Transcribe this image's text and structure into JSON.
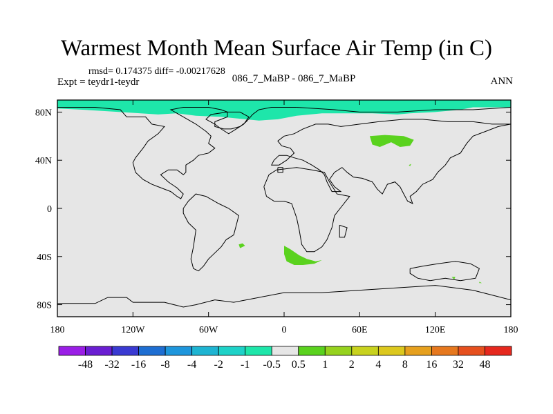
{
  "title": "Warmest Month Mean Surface Air Temp (in C)",
  "stats": "rmsd= 0.174375  diff= -0.00217628",
  "experiment": "Expt = teydr1-teydr",
  "center_label": "086_7_MaBP - 086_7_MaBP",
  "season": "ANN",
  "map": {
    "lon_range": [
      -180,
      180
    ],
    "lat_range": [
      -90,
      90
    ],
    "background_color": "#e6e6e6",
    "coastline_color": "#000000"
  },
  "axes": {
    "x_ticks": [
      {
        "value": -180,
        "label": "180"
      },
      {
        "value": -120,
        "label": "120W"
      },
      {
        "value": -60,
        "label": "60W"
      },
      {
        "value": 0,
        "label": "0"
      },
      {
        "value": 60,
        "label": "60E"
      },
      {
        "value": 120,
        "label": "120E"
      },
      {
        "value": 180,
        "label": "180"
      }
    ],
    "y_ticks": [
      {
        "value": 80,
        "label": "80N"
      },
      {
        "value": 40,
        "label": "40N"
      },
      {
        "value": 0,
        "label": "0"
      },
      {
        "value": -40,
        "label": "40S"
      },
      {
        "value": -80,
        "label": "80S"
      }
    ]
  },
  "colorbar": {
    "colors": [
      "#9a1ee6",
      "#6a1ed2",
      "#3a3ad2",
      "#1e6ed2",
      "#1e96dc",
      "#1eb4d2",
      "#1ed2c8",
      "#1ee6aa",
      "#e6e6e6",
      "#5ad21e",
      "#96d21e",
      "#c8d21e",
      "#dcc81e",
      "#e6a01e",
      "#e6781e",
      "#e6501e",
      "#e6281e"
    ],
    "labels": [
      "-48",
      "-32",
      "-16",
      "-8",
      "-4",
      "-2",
      "-1",
      "-0.5",
      "0.5",
      "1",
      "2",
      "4",
      "8",
      "16",
      "32",
      "48"
    ]
  },
  "anomalies": [
    {
      "name": "arctic-band",
      "color": "#1ee6aa",
      "points": [
        [
          -180,
          90
        ],
        [
          180,
          90
        ],
        [
          180,
          84
        ],
        [
          150,
          84
        ],
        [
          140,
          82
        ],
        [
          120,
          80
        ],
        [
          100,
          79
        ],
        [
          90,
          78
        ],
        [
          70,
          79
        ],
        [
          30,
          79
        ],
        [
          10,
          77
        ],
        [
          -5,
          74
        ],
        [
          -20,
          73
        ],
        [
          -50,
          76
        ],
        [
          -70,
          77
        ],
        [
          -85,
          79
        ],
        [
          -100,
          78
        ],
        [
          -130,
          80
        ],
        [
          -160,
          82
        ],
        [
          -180,
          83
        ]
      ]
    },
    {
      "name": "siberia-patch",
      "color": "#5ad21e",
      "points": [
        [
          68,
          60
        ],
        [
          80,
          61
        ],
        [
          95,
          60
        ],
        [
          103,
          57
        ],
        [
          100,
          52
        ],
        [
          92,
          51
        ],
        [
          85,
          55
        ],
        [
          76,
          51
        ],
        [
          70,
          53
        ]
      ]
    },
    {
      "name": "south-africa-patch",
      "color": "#5ad21e",
      "points": [
        [
          0,
          -31
        ],
        [
          5,
          -34
        ],
        [
          12,
          -39
        ],
        [
          18,
          -42
        ],
        [
          25,
          -44
        ],
        [
          30,
          -43
        ],
        [
          24,
          -46
        ],
        [
          15,
          -47
        ],
        [
          8,
          -47
        ],
        [
          2,
          -44
        ],
        [
          0,
          -38
        ]
      ]
    },
    {
      "name": "south-america-patch",
      "color": "#5ad21e",
      "points": [
        [
          -36,
          -30
        ],
        [
          -33,
          -29
        ],
        [
          -31,
          -31
        ],
        [
          -35,
          -33
        ]
      ]
    },
    {
      "name": "asia-dot",
      "color": "#5ad21e",
      "points": [
        [
          99,
          36
        ],
        [
          101,
          37
        ],
        [
          100,
          35
        ]
      ]
    },
    {
      "name": "australia-dot",
      "color": "#5ad21e",
      "points": [
        [
          133,
          -57
        ],
        [
          136,
          -57
        ],
        [
          135,
          -59
        ]
      ]
    },
    {
      "name": "pacific-dot",
      "color": "#5ad21e",
      "points": [
        [
          155,
          -61
        ],
        [
          157,
          -62
        ],
        [
          155,
          -62
        ]
      ]
    }
  ],
  "coastlines": [
    {
      "name": "north-america",
      "points": [
        [
          -180,
          84
        ],
        [
          -150,
          84
        ],
        [
          -130,
          82
        ],
        [
          -125,
          76
        ],
        [
          -110,
          76
        ],
        [
          -105,
          70
        ],
        [
          -95,
          68
        ],
        [
          -100,
          62
        ],
        [
          -108,
          56
        ],
        [
          -112,
          50
        ],
        [
          -118,
          42
        ],
        [
          -120,
          38
        ],
        [
          -118,
          30
        ],
        [
          -112,
          24
        ],
        [
          -105,
          20
        ],
        [
          -100,
          18
        ],
        [
          -95,
          16
        ],
        [
          -90,
          14
        ],
        [
          -85,
          10
        ],
        [
          -82,
          8
        ],
        [
          -80,
          12
        ],
        [
          -85,
          17
        ],
        [
          -92,
          22
        ],
        [
          -98,
          28
        ],
        [
          -92,
          32
        ],
        [
          -85,
          32
        ],
        [
          -80,
          28
        ],
        [
          -78,
          30
        ],
        [
          -78,
          36
        ],
        [
          -72,
          40
        ],
        [
          -68,
          44
        ],
        [
          -60,
          46
        ],
        [
          -55,
          50
        ],
        [
          -60,
          54
        ],
        [
          -58,
          60
        ],
        [
          -62,
          64
        ],
        [
          -70,
          70
        ],
        [
          -80,
          76
        ],
        [
          -90,
          82
        ],
        [
          -80,
          84
        ],
        [
          -60,
          84
        ],
        [
          -50,
          82
        ],
        [
          -45,
          80
        ],
        [
          -45,
          76
        ],
        [
          -55,
          72
        ],
        [
          -55,
          68
        ],
        [
          -48,
          66
        ],
        [
          -42,
          66
        ],
        [
          -35,
          68
        ],
        [
          -30,
          72
        ],
        [
          -25,
          78
        ],
        [
          -20,
          82
        ],
        [
          -10,
          84
        ],
        [
          10,
          84
        ]
      ]
    },
    {
      "name": "greenland",
      "points": [
        [
          -45,
          80
        ],
        [
          -58,
          78
        ],
        [
          -62,
          74
        ],
        [
          -55,
          70
        ],
        [
          -50,
          66
        ],
        [
          -44,
          62
        ],
        [
          -38,
          66
        ],
        [
          -32,
          70
        ],
        [
          -28,
          76
        ],
        [
          -35,
          80
        ],
        [
          -45,
          80
        ]
      ]
    },
    {
      "name": "eurasia",
      "points": [
        [
          10,
          84
        ],
        [
          40,
          82
        ],
        [
          60,
          80
        ],
        [
          90,
          80
        ],
        [
          120,
          82
        ],
        [
          150,
          82
        ],
        [
          180,
          84
        ]
      ]
    },
    {
      "name": "eurasia-south",
      "points": [
        [
          180,
          70
        ],
        [
          170,
          68
        ],
        [
          160,
          64
        ],
        [
          150,
          60
        ],
        [
          145,
          54
        ],
        [
          140,
          46
        ],
        [
          132,
          42
        ],
        [
          128,
          36
        ],
        [
          122,
          30
        ],
        [
          118,
          24
        ],
        [
          110,
          20
        ],
        [
          105,
          14
        ],
        [
          100,
          10
        ],
        [
          102,
          4
        ],
        [
          98,
          6
        ],
        [
          95,
          12
        ],
        [
          92,
          18
        ],
        [
          88,
          22
        ],
        [
          82,
          20
        ],
        [
          78,
          12
        ],
        [
          74,
          16
        ],
        [
          70,
          22
        ],
        [
          62,
          25
        ],
        [
          55,
          26
        ],
        [
          50,
          30
        ],
        [
          46,
          34
        ],
        [
          40,
          30
        ],
        [
          36,
          24
        ],
        [
          40,
          18
        ],
        [
          45,
          14
        ],
        [
          38,
          14
        ],
        [
          34,
          22
        ],
        [
          32,
          28
        ],
        [
          28,
          32
        ],
        [
          22,
          36
        ],
        [
          15,
          40
        ],
        [
          8,
          42
        ],
        [
          2,
          44
        ],
        [
          -4,
          44
        ],
        [
          -8,
          40
        ],
        [
          -10,
          36
        ],
        [
          -4,
          36
        ],
        [
          2,
          40
        ],
        [
          8,
          46
        ],
        [
          5,
          50
        ],
        [
          -2,
          52
        ],
        [
          -5,
          56
        ],
        [
          0,
          60
        ],
        [
          8,
          62
        ],
        [
          15,
          66
        ],
        [
          25,
          70
        ],
        [
          35,
          70
        ],
        [
          45,
          68
        ],
        [
          60,
          70
        ],
        [
          75,
          72
        ],
        [
          95,
          74
        ],
        [
          110,
          74
        ],
        [
          130,
          72
        ],
        [
          150,
          72
        ],
        [
          165,
          70
        ],
        [
          180,
          70
        ]
      ]
    },
    {
      "name": "africa",
      "points": [
        [
          -16,
          18
        ],
        [
          -12,
          28
        ],
        [
          -6,
          32
        ],
        [
          10,
          34
        ],
        [
          22,
          32
        ],
        [
          32,
          30
        ],
        [
          36,
          22
        ],
        [
          42,
          12
        ],
        [
          52,
          10
        ],
        [
          46,
          2
        ],
        [
          40,
          -6
        ],
        [
          38,
          -16
        ],
        [
          34,
          -26
        ],
        [
          30,
          -32
        ],
        [
          24,
          -36
        ],
        [
          18,
          -36
        ],
        [
          14,
          -30
        ],
        [
          12,
          -18
        ],
        [
          10,
          -8
        ],
        [
          8,
          -2
        ],
        [
          6,
          4
        ],
        [
          0,
          6
        ],
        [
          -8,
          6
        ],
        [
          -14,
          10
        ],
        [
          -16,
          18
        ]
      ]
    },
    {
      "name": "south-america",
      "points": [
        [
          -80,
          0
        ],
        [
          -76,
          6
        ],
        [
          -70,
          12
        ],
        [
          -62,
          10
        ],
        [
          -52,
          4
        ],
        [
          -44,
          0
        ],
        [
          -36,
          -6
        ],
        [
          -38,
          -14
        ],
        [
          -40,
          -22
        ],
        [
          -46,
          -26
        ],
        [
          -50,
          -32
        ],
        [
          -56,
          -38
        ],
        [
          -60,
          -42
        ],
        [
          -64,
          -48
        ],
        [
          -68,
          -52
        ],
        [
          -72,
          -50
        ],
        [
          -74,
          -42
        ],
        [
          -72,
          -32
        ],
        [
          -70,
          -18
        ],
        [
          -76,
          -12
        ],
        [
          -80,
          -4
        ],
        [
          -80,
          0
        ]
      ]
    },
    {
      "name": "madagascar",
      "points": [
        [
          44,
          -14
        ],
        [
          50,
          -16
        ],
        [
          48,
          -24
        ],
        [
          44,
          -24
        ],
        [
          44,
          -14
        ]
      ]
    },
    {
      "name": "australia",
      "points": [
        [
          100,
          -50
        ],
        [
          110,
          -48
        ],
        [
          122,
          -46
        ],
        [
          136,
          -44
        ],
        [
          148,
          -46
        ],
        [
          155,
          -50
        ],
        [
          152,
          -58
        ],
        [
          140,
          -60
        ],
        [
          128,
          -58
        ],
        [
          116,
          -60
        ],
        [
          106,
          -58
        ],
        [
          100,
          -54
        ],
        [
          100,
          -50
        ]
      ]
    },
    {
      "name": "antarctica",
      "points": [
        [
          -180,
          -79
        ],
        [
          -150,
          -79
        ],
        [
          -140,
          -74
        ],
        [
          -125,
          -74
        ],
        [
          -120,
          -78
        ],
        [
          -95,
          -78
        ],
        [
          -80,
          -82
        ],
        [
          -70,
          -80
        ],
        [
          -55,
          -76
        ],
        [
          -40,
          -78
        ],
        [
          -20,
          -74
        ],
        [
          0,
          -70
        ],
        [
          30,
          -70
        ],
        [
          60,
          -68
        ],
        [
          90,
          -66
        ],
        [
          120,
          -64
        ],
        [
          150,
          -68
        ],
        [
          165,
          -72
        ],
        [
          180,
          -76
        ]
      ]
    },
    {
      "name": "caspian",
      "points": [
        [
          -5,
          34
        ],
        [
          -1,
          34
        ],
        [
          -1,
          30
        ],
        [
          -5,
          30
        ],
        [
          -5,
          34
        ]
      ]
    }
  ]
}
